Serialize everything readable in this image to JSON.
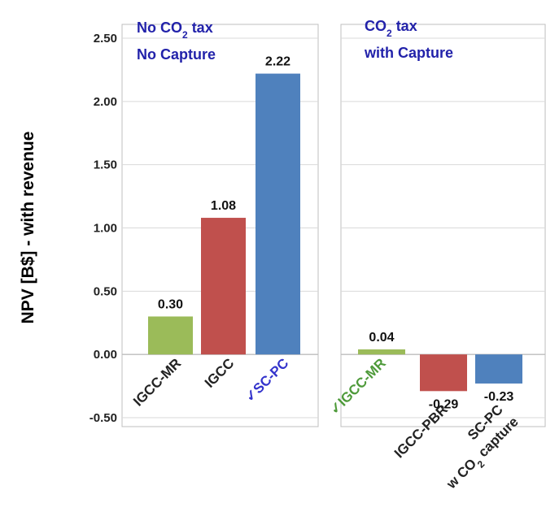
{
  "chart_data": {
    "type": "bar",
    "ylabel": "NPV [B$] - with revenue",
    "ylim": [
      -0.5,
      2.5
    ],
    "yticks": [
      "2.50",
      "2.00",
      "1.50",
      "1.00",
      "0.50",
      "0.00",
      "-0.50"
    ],
    "yticks_values": [
      2.5,
      2.0,
      1.5,
      1.0,
      0.5,
      0.0,
      -0.5
    ],
    "grid": true,
    "panels": [
      {
        "title_lines": [
          {
            "pre": "No CO",
            "sub": "2",
            "post": " tax"
          },
          {
            "pre": "No Capture",
            "sub": "",
            "post": ""
          }
        ],
        "bars": [
          {
            "category": "IGCC-MR",
            "value": 0.3,
            "value_label": "0.30",
            "color": "#9bbb59",
            "label_color": "#222222"
          },
          {
            "category": "IGCC",
            "value": 1.08,
            "value_label": "1.08",
            "color": "#c0504d",
            "label_color": "#222222"
          },
          {
            "category": "✓SC-PC",
            "value": 2.22,
            "value_label": "2.22",
            "color": "#4f81bd",
            "label_color": "#3333cc"
          }
        ]
      },
      {
        "title_lines": [
          {
            "pre": "CO",
            "sub": "2",
            "post": " tax"
          },
          {
            "pre": "with Capture",
            "sub": "",
            "post": ""
          }
        ],
        "bars": [
          {
            "category": "✓IGCC-MR",
            "value": 0.04,
            "value_label": "0.04",
            "color": "#9bbb59",
            "label_color": "#4e9a3a"
          },
          {
            "category": "IGCC-PBR",
            "value": -0.29,
            "value_label": "-0.29",
            "color": "#c0504d",
            "label_color": "#222222"
          },
          {
            "category": "SC-PC",
            "category_line2": {
              "pre": "w CO",
              "sub": "2",
              "post": " capture"
            },
            "value": -0.23,
            "value_label": "-0.23",
            "color": "#4f81bd",
            "label_color": "#222222"
          }
        ]
      }
    ],
    "colors": {
      "title": "#2222aa",
      "grid": "#d9d9d9",
      "frame": "#bfbfbf"
    }
  }
}
